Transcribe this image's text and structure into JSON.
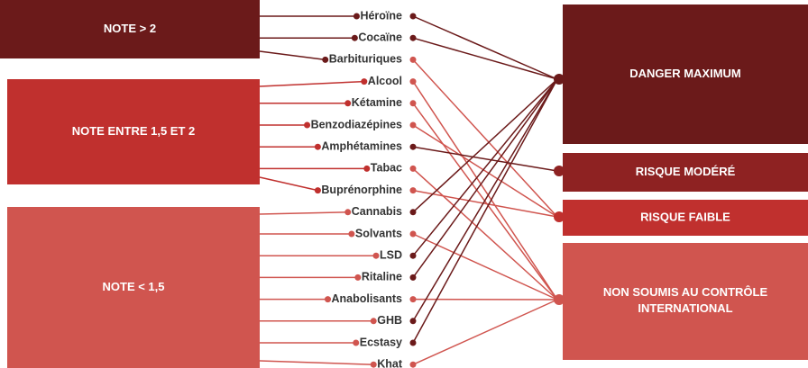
{
  "groups": [
    {
      "label": "NOTE > 2"
    },
    {
      "label": "NOTE ENTRE 1,5 ET 2"
    },
    {
      "label": "NOTE < 1,5"
    }
  ],
  "substances": [
    "Héroïne",
    "Cocaïne",
    "Barbituriques",
    "Alcool",
    "Kétamine",
    "Benzodiazépines",
    "Amphétamines",
    "Tabac",
    "Buprénorphine",
    "Cannabis",
    "Solvants",
    "LSD",
    "Ritaline",
    "Anabolisants",
    "GHB",
    "Ecstasy",
    "Khat"
  ],
  "categories": [
    {
      "label": "DANGER MAXIMUM"
    },
    {
      "label": "RISQUE MODÉRÉ"
    },
    {
      "label": "RISQUE FAIBLE"
    },
    {
      "label": "NON SOUMIS AU CONTRÔLE INTERNATIONAL"
    }
  ]
}
